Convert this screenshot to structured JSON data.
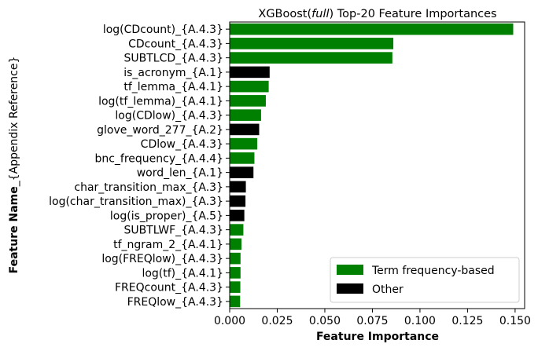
{
  "chart_data": {
    "type": "bar",
    "orientation": "horizontal",
    "title_prefix": "XGBoost(",
    "title_italic": "full",
    "title_suffix": ") Top-20 Feature Importances",
    "xlabel": "Feature Importance",
    "ylabel": "Feature Name_{Appendix Reference}",
    "xlim": [
      0,
      0.155
    ],
    "xticks": [
      "0.000",
      "0.025",
      "0.050",
      "0.075",
      "0.100",
      "0.125",
      "0.150"
    ],
    "xtick_values": [
      0,
      0.025,
      0.05,
      0.075,
      0.1,
      0.125,
      0.15
    ],
    "grid": false,
    "legend_position": "lower-right",
    "legend": [
      {
        "label": "Term frequency-based",
        "group": "tf"
      },
      {
        "label": "Other",
        "group": "other"
      }
    ],
    "colors": {
      "tf": "#008000",
      "other": "#000000"
    },
    "categories": [
      "log(CDcount)_{A.4.3}",
      "CDcount_{A.4.3}",
      "SUBTLCD_{A.4.3}",
      "is_acronym_{A.1}",
      "tf_lemma_{A.4.1}",
      "log(tf_lemma)_{A.4.1}",
      "log(CDlow)_{A.4.3}",
      "glove_word_277_{A.2}",
      "CDlow_{A.4.3}",
      "bnc_frequency_{A.4.4}",
      "word_len_{A.1}",
      "char_transition_max_{A.3}",
      "log(char_transition_max)_{A.3}",
      "log(is_proper)_{A.5}",
      "SUBTLWF_{A.4.3}",
      "tf_ngram_2_{A.4.1}",
      "log(FREQlow)_{A.4.3}",
      "log(tf)_{A.4.1}",
      "FREQcount_{A.4.3}",
      "FREQlow_{A.4.3}"
    ],
    "values": [
      0.149,
      0.086,
      0.0855,
      0.021,
      0.0205,
      0.019,
      0.0165,
      0.0155,
      0.0145,
      0.013,
      0.0125,
      0.0085,
      0.0083,
      0.0077,
      0.0072,
      0.0062,
      0.0057,
      0.0057,
      0.0056,
      0.0055
    ],
    "groups": [
      "tf",
      "tf",
      "tf",
      "other",
      "tf",
      "tf",
      "tf",
      "other",
      "tf",
      "tf",
      "other",
      "other",
      "other",
      "other",
      "tf",
      "tf",
      "tf",
      "tf",
      "tf",
      "tf"
    ]
  }
}
